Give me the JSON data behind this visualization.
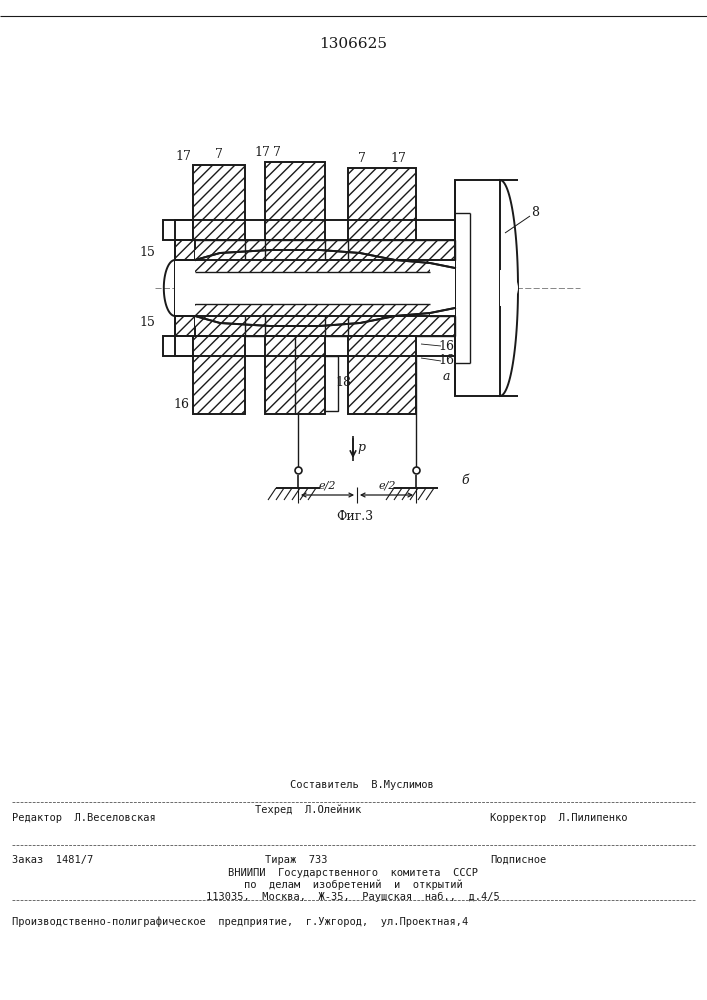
{
  "patent_number": "1306625",
  "bg_color": "#ffffff",
  "line_color": "#1a1a1a",
  "footer": {
    "sestavitel": "Составитель  В.Муслимов",
    "redaktor": "Редактор  Л.Веселовская",
    "tehred": "Техред  Л.Олейник",
    "korrektor": "Корректор  Л.Пилипенко",
    "zakaz": "Заказ  1481/7",
    "tirazh": "Тираж  733",
    "podpisnoe": "Подписное",
    "vniipи1": "ВНИИПИ  Государственного  комитета  СССР",
    "vniipи2": "по  делам  изобретений  и  открытий",
    "vniipи3": "113035,  Москва,  Ж-35,  Раушская  наб.,  д.4/5",
    "ppр": "Производственно-полиграфическое  предприятие,  г.Ужгород,  ул.Проектная,4"
  }
}
